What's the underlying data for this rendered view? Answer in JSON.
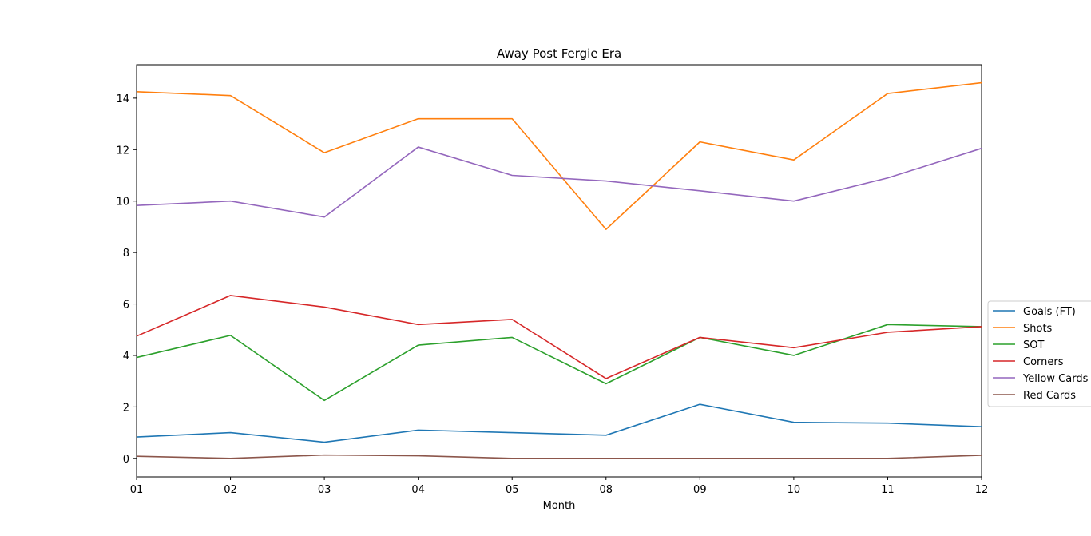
{
  "chart_data": {
    "type": "line",
    "title": "Away Post Fergie Era",
    "xlabel": "Month",
    "ylabel": "",
    "categories": [
      "01",
      "02",
      "03",
      "04",
      "05",
      "08",
      "09",
      "10",
      "11",
      "12"
    ],
    "ylim": [
      -0.72,
      15.3
    ],
    "yticks": [
      0,
      2,
      4,
      6,
      8,
      10,
      12,
      14
    ],
    "grid": false,
    "legend_position": "center-right",
    "series": [
      {
        "name": "Goals (FT)",
        "color": "#1f77b4",
        "values": [
          0.83,
          1.0,
          0.63,
          1.1,
          1.0,
          0.9,
          2.1,
          1.4,
          1.37,
          1.23
        ]
      },
      {
        "name": "Shots",
        "color": "#ff7f0e",
        "values": [
          14.25,
          14.1,
          11.88,
          13.2,
          13.2,
          8.9,
          12.3,
          11.6,
          14.18,
          14.6
        ]
      },
      {
        "name": "SOT",
        "color": "#2ca02c",
        "values": [
          3.92,
          4.78,
          2.25,
          4.4,
          4.7,
          2.9,
          4.7,
          4.0,
          5.2,
          5.12
        ]
      },
      {
        "name": "Corners",
        "color": "#d62728",
        "values": [
          4.75,
          6.33,
          5.88,
          5.2,
          5.4,
          3.1,
          4.7,
          4.3,
          4.9,
          5.12
        ]
      },
      {
        "name": "Yellow Cards",
        "color": "#9467bd",
        "values": [
          9.83,
          10.0,
          9.38,
          12.1,
          11.0,
          10.78,
          10.4,
          10.0,
          10.9,
          12.05
        ]
      },
      {
        "name": "Red Cards",
        "color": "#8c564b",
        "values": [
          0.08,
          0.0,
          0.13,
          0.1,
          0.0,
          0.0,
          0.0,
          0.0,
          0.0,
          0.12
        ]
      }
    ]
  }
}
